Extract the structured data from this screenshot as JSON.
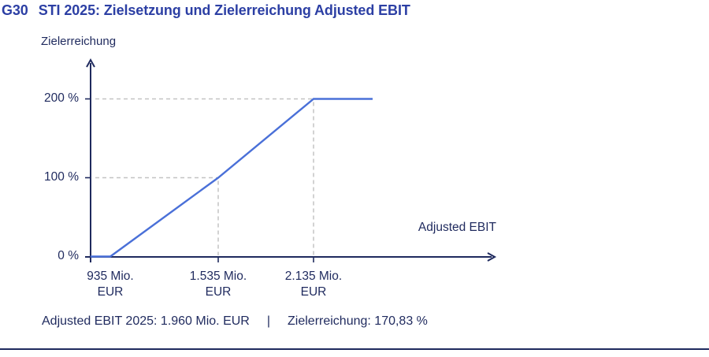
{
  "header": {
    "figure_number": "G30",
    "title": "STI 2025: Zielsetzung und Zielerreichung Adjusted EBIT"
  },
  "chart_data": {
    "type": "line",
    "title": "STI 2025: Zielsetzung und Zielerreichung Adjusted EBIT",
    "xlabel": "Adjusted EBIT",
    "ylabel": "Zielerreichung",
    "x_unit": "Mio. EUR",
    "y_unit": "%",
    "ylim": [
      0,
      200
    ],
    "grid": "no background grid; dashed guide lines from axes to the 100 % and 200 % threshold points",
    "legend_position": "none",
    "y_ticks": [
      {
        "pct": 0,
        "label": "0 %"
      },
      {
        "pct": 100,
        "label": "100 %"
      },
      {
        "pct": 200,
        "label": "200 %"
      }
    ],
    "x_ticks": [
      {
        "mio_eur": 935,
        "label": "935 Mio.",
        "label2": "EUR"
      },
      {
        "mio_eur": 1535,
        "label": "1.535 Mio.",
        "label2": "EUR"
      },
      {
        "mio_eur": 2135,
        "label": "2.135 Mio.",
        "label2": "EUR"
      }
    ],
    "series": [
      {
        "points": [
          {
            "x_mio_eur": 935,
            "payout_pct": 0
          },
          {
            "x_mio_eur": 1535,
            "payout_pct": 100
          },
          {
            "x_mio_eur": 2135,
            "payout_pct": 200
          }
        ],
        "payout_floor_pct": 0,
        "payout_cap_pct": 200
      }
    ],
    "colors": {
      "line": "#4a70d8",
      "axis": "#1f2a5e",
      "guide": "#c3c3c3",
      "heading": "#2c3fa4"
    }
  },
  "caption": {
    "adjusted_ebit_result": "Adjusted EBIT 2025: 1.960 Mio. EUR",
    "separator": "|",
    "zielerreichung_result": "Zielerreichung: 170,83 %"
  }
}
